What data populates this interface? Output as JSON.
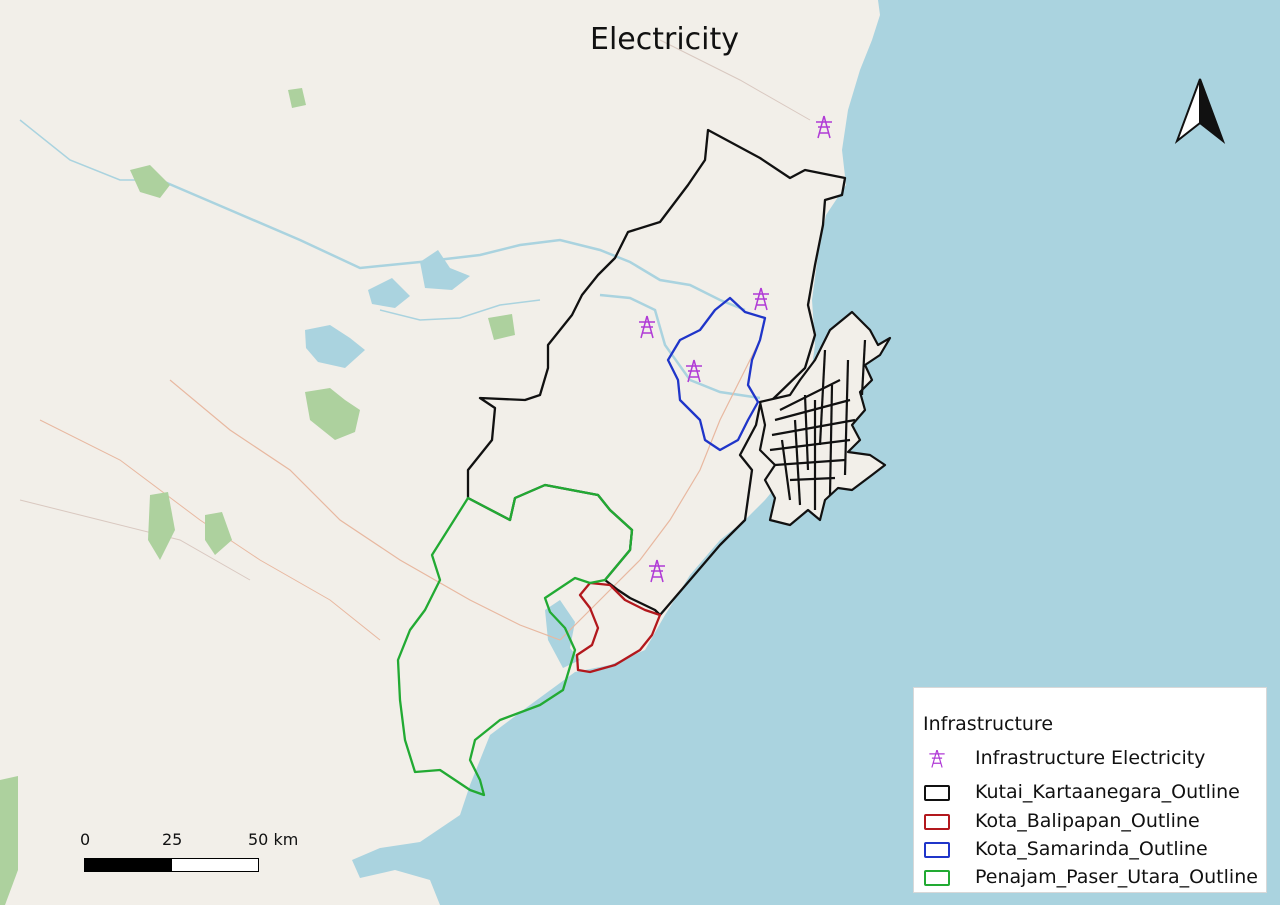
{
  "title": "Electricity",
  "colors": {
    "land": "#f2efe9",
    "sea": "#aad3df",
    "kutai": "#111111",
    "balikpapan": "#b2181d",
    "samarinda": "#1f35c9",
    "penajam": "#22aa33",
    "electricity_icon": "#b03ad6"
  },
  "north_arrow_icon": "north-arrow-icon",
  "scalebar": {
    "labels": [
      "0",
      "25",
      "50 km"
    ]
  },
  "legend": {
    "title": "Infrastructure",
    "items": [
      {
        "label": "Infrastructure Electricity",
        "icon": "transmission-tower-icon"
      },
      {
        "label": "Kutai_Kartaanegara_Outline",
        "color": "#111111"
      },
      {
        "label": "Kota_Balipapan_Outline",
        "color": "#b2181d"
      },
      {
        "label": "Kota_Samarinda_Outline",
        "color": "#1f35c9"
      },
      {
        "label": "Penajam_Paser_Utara_Outline",
        "color": "#22aa33"
      }
    ]
  }
}
